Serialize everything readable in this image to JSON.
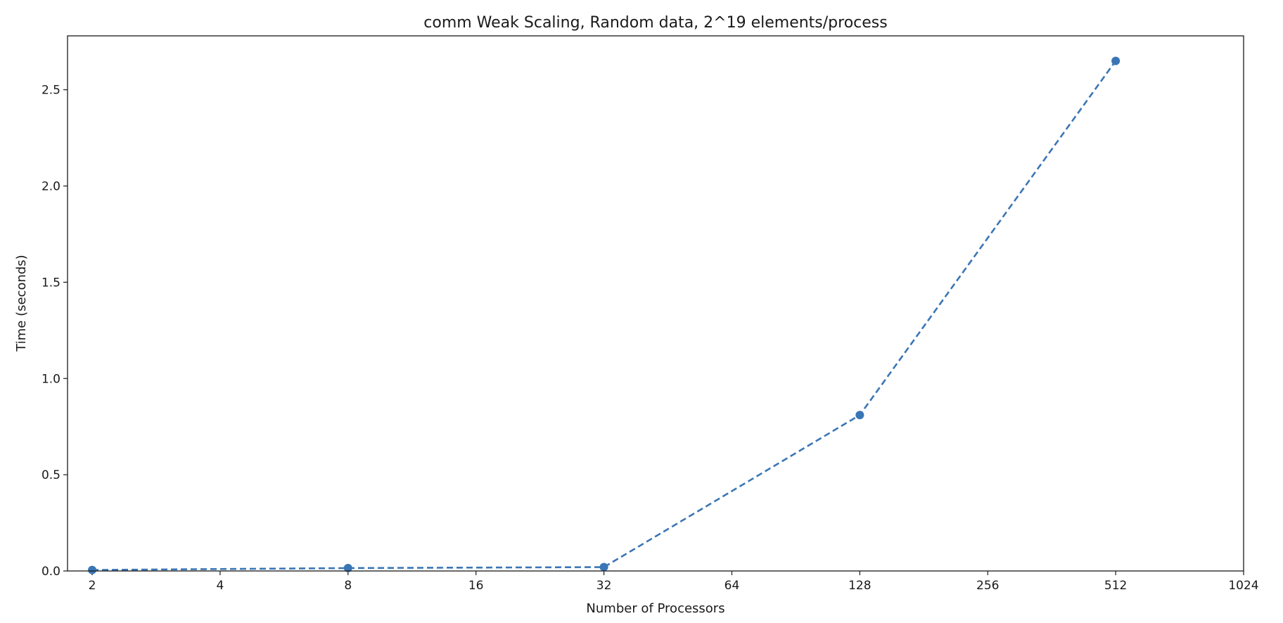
{
  "chart_data": {
    "type": "line",
    "title": "comm Weak Scaling, Random data, 2^19 elements/process",
    "xlabel": "Number of Processors",
    "ylabel": "Time (seconds)",
    "x_scale": "log2",
    "x_ticks": [
      2,
      4,
      8,
      16,
      32,
      64,
      128,
      256,
      512,
      1024
    ],
    "x_tick_labels": [
      "2",
      "4",
      "8",
      "16",
      "32",
      "64",
      "128",
      "256",
      "512",
      "1024"
    ],
    "y_ticks": [
      0.0,
      0.5,
      1.0,
      1.5,
      2.0,
      2.5
    ],
    "y_tick_labels": [
      "0.0",
      "0.5",
      "1.0",
      "1.5",
      "2.0",
      "2.5"
    ],
    "xlim": [
      1.75,
      1024
    ],
    "ylim": [
      0,
      2.78
    ],
    "grid": false,
    "series": [
      {
        "x": [
          2,
          8,
          32,
          128,
          512
        ],
        "values": [
          0.005,
          0.015,
          0.02,
          0.81,
          2.65
        ],
        "color": "#3a76b5",
        "line_style": "dashed",
        "marker": "circle"
      }
    ]
  }
}
